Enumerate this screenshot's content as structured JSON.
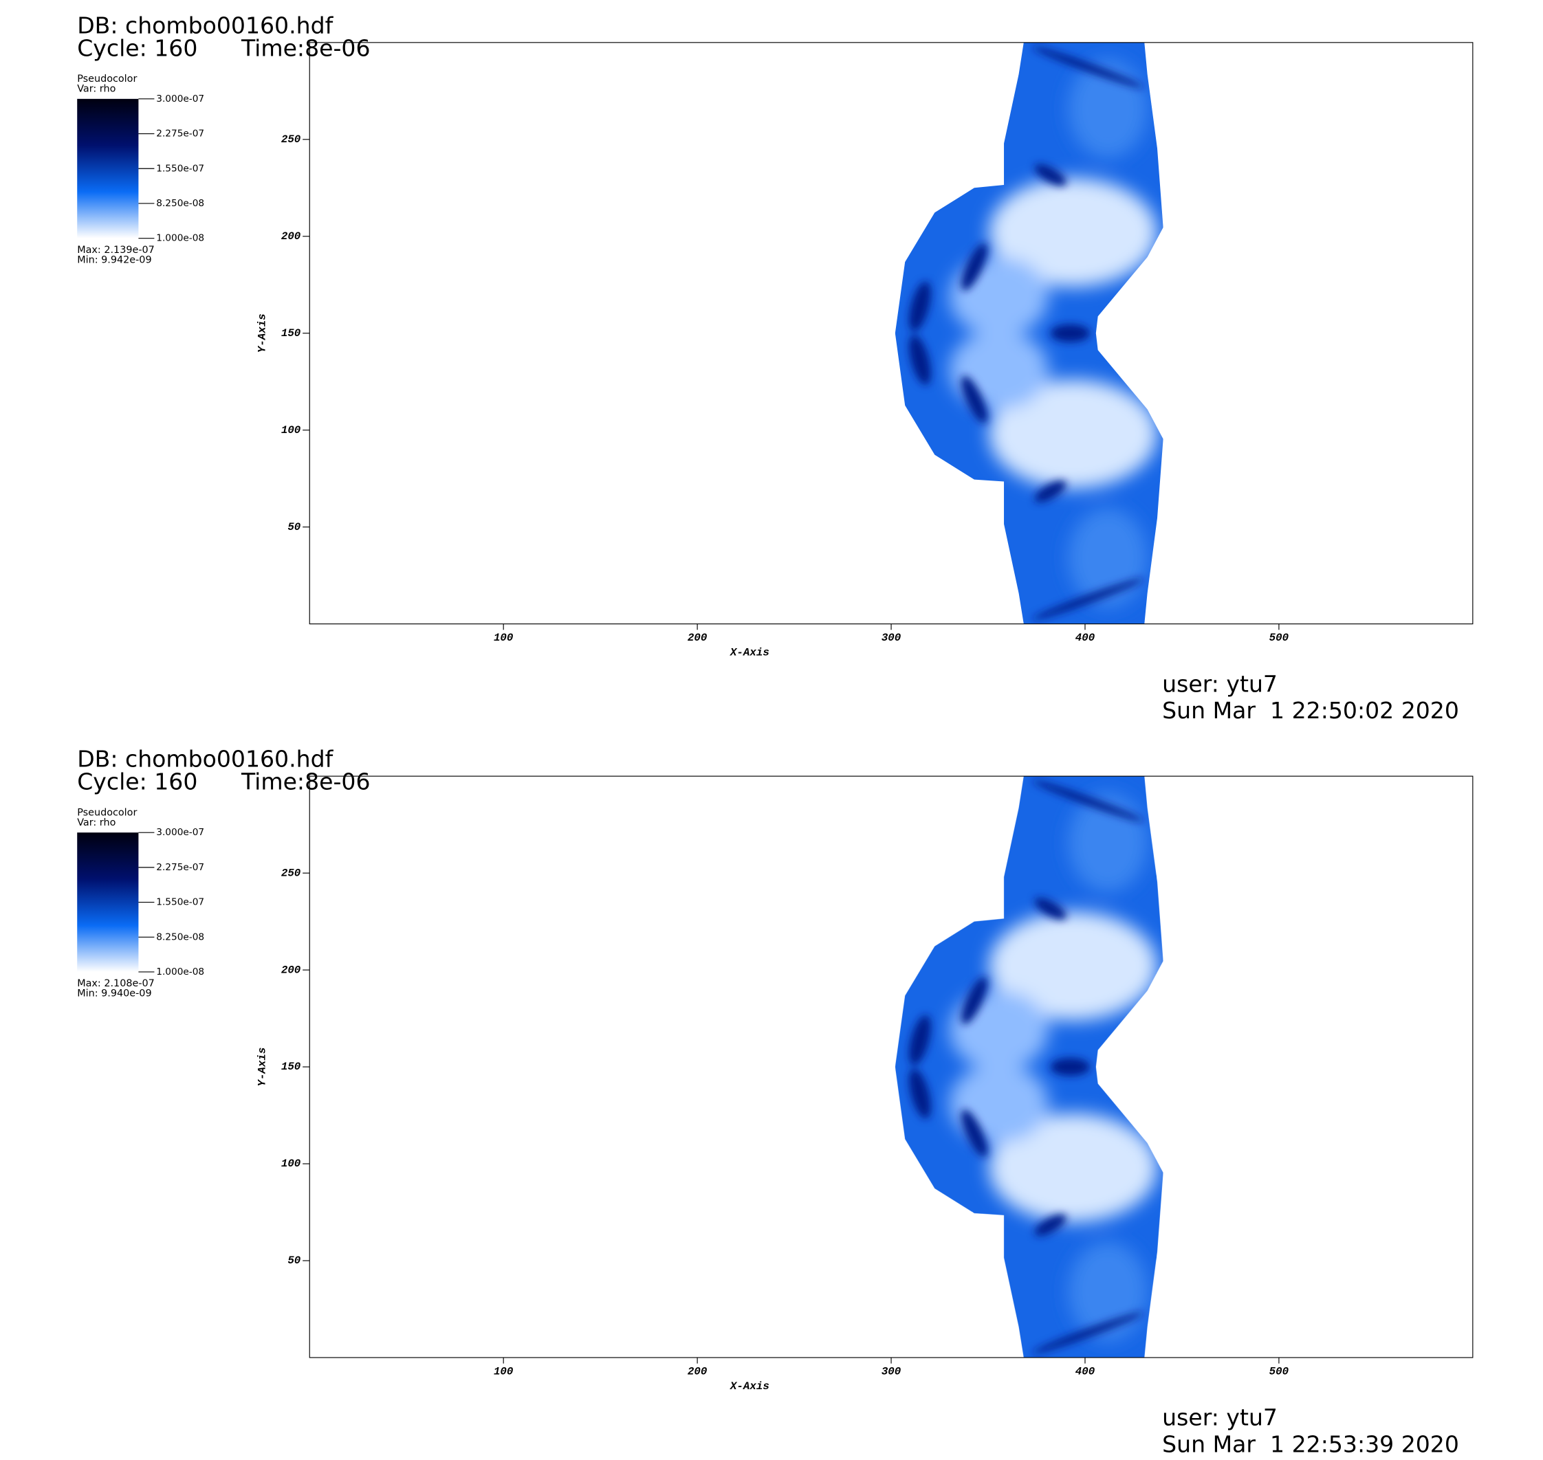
{
  "chart_data": [
    {
      "type": "pseudocolor",
      "db": "DB: chombo00160.hdf",
      "cycle": "Cycle: 160",
      "time": "Time:8e-06",
      "legend_title": "Pseudocolor",
      "variable": "Var: rho",
      "clim": [
        1e-08,
        3e-07
      ],
      "colorbar_ticks": [
        {
          "value": 3e-07,
          "label": "3.000e-07"
        },
        {
          "value": 2.275e-07,
          "label": "2.275e-07"
        },
        {
          "value": 1.55e-07,
          "label": "1.550e-07"
        },
        {
          "value": 8.25e-08,
          "label": "8.250e-08"
        },
        {
          "value": 1e-08,
          "label": "1.000e-08"
        }
      ],
      "colors": [
        "#ffffff",
        "#0a6cf5",
        "#00106e",
        "#000010"
      ],
      "max": "Max: 2.139e-07",
      "min": "Min: 9.942e-09",
      "xlabel": "X-Axis",
      "ylabel": "Y-Axis",
      "xlim": [
        0,
        600
      ],
      "ylim": [
        0,
        300
      ],
      "xticks": [
        100,
        200,
        300,
        400,
        500
      ],
      "yticks": [
        50,
        100,
        150,
        200,
        250
      ],
      "user": "user: ytu7",
      "date": "Sun Mar  1 22:50:02 2020"
    },
    {
      "type": "pseudocolor",
      "db": "DB: chombo00160.hdf",
      "cycle": "Cycle: 160",
      "time": "Time:8e-06",
      "legend_title": "Pseudocolor",
      "variable": "Var: rho",
      "clim": [
        1e-08,
        3e-07
      ],
      "colorbar_ticks": [
        {
          "value": 3e-07,
          "label": "3.000e-07"
        },
        {
          "value": 2.275e-07,
          "label": "2.275e-07"
        },
        {
          "value": 1.55e-07,
          "label": "1.550e-07"
        },
        {
          "value": 8.25e-08,
          "label": "8.250e-08"
        },
        {
          "value": 1e-08,
          "label": "1.000e-08"
        }
      ],
      "colors": [
        "#ffffff",
        "#0a6cf5",
        "#00106e",
        "#000010"
      ],
      "max": "Max: 2.108e-07",
      "min": "Min: 9.940e-09",
      "xlabel": "X-Axis",
      "ylabel": "Y-Axis",
      "xlim": [
        0,
        600
      ],
      "ylim": [
        0,
        300
      ],
      "xticks": [
        100,
        200,
        300,
        400,
        500
      ],
      "yticks": [
        50,
        100,
        150,
        200,
        250
      ],
      "user": "user: ytu7",
      "date": "Sun Mar  1 22:53:39 2020"
    }
  ]
}
